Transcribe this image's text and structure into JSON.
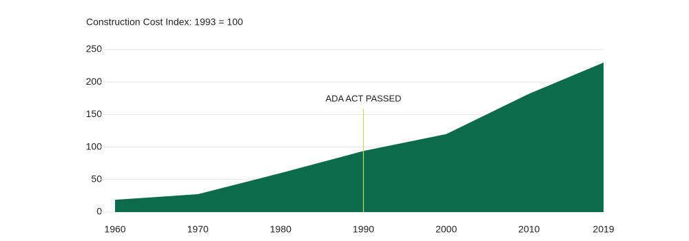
{
  "chart_data": {
    "type": "area",
    "title": "Construction Cost Index: 1993 = 100",
    "x": [
      1960,
      1970,
      1980,
      1990,
      2000,
      2010,
      2019
    ],
    "values": [
      19,
      27.5,
      60,
      94,
      120,
      182,
      230
    ],
    "color": "#0b6b4a",
    "xlim": [
      1960,
      2019
    ],
    "xticks": [
      1960,
      1970,
      1980,
      1990,
      2000,
      2010,
      2019
    ],
    "ylim": [
      0,
      250
    ],
    "yticks": [
      0,
      50,
      100,
      150,
      200,
      250
    ],
    "grid": true,
    "annotation": {
      "text": "ADA ACT PASSED",
      "x": 1990,
      "color": "#c5d86d"
    }
  }
}
